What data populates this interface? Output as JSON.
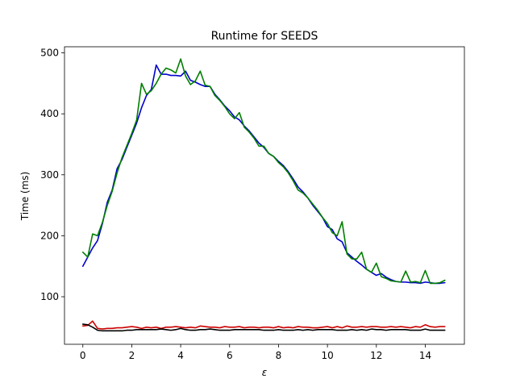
{
  "chart_data": {
    "type": "line",
    "title": "Runtime for SEEDS",
    "xlabel": "ε",
    "ylabel": "Time (ms)",
    "xlim": [
      -0.75,
      15.6
    ],
    "ylim": [
      22,
      510
    ],
    "xticks": [
      0,
      2,
      4,
      6,
      8,
      10,
      12,
      14
    ],
    "xtick_labels": [
      "0",
      "2",
      "4",
      "6",
      "8",
      "10",
      "12",
      "14"
    ],
    "yticks": [
      100,
      200,
      300,
      400,
      500
    ],
    "ytick_labels": [
      "100",
      "200",
      "300",
      "400",
      "500"
    ],
    "grid": false,
    "legend": "none",
    "x": [
      0.0,
      0.2,
      0.4,
      0.6,
      0.8,
      1.0,
      1.2,
      1.4,
      1.6,
      1.8,
      2.0,
      2.2,
      2.4,
      2.6,
      2.8,
      3.0,
      3.2,
      3.4,
      3.6,
      3.8,
      4.0,
      4.2,
      4.4,
      4.6,
      4.8,
      5.0,
      5.2,
      5.4,
      5.6,
      5.8,
      6.0,
      6.2,
      6.4,
      6.6,
      6.8,
      7.0,
      7.2,
      7.4,
      7.6,
      7.8,
      8.0,
      8.2,
      8.4,
      8.6,
      8.8,
      9.0,
      9.2,
      9.4,
      9.6,
      9.8,
      10.0,
      10.2,
      10.4,
      10.6,
      10.8,
      11.0,
      11.2,
      11.4,
      11.6,
      11.8,
      12.0,
      12.2,
      12.4,
      12.6,
      12.8,
      13.0,
      13.2,
      13.4,
      13.6,
      13.8,
      14.0,
      14.2,
      14.4,
      14.6,
      14.8
    ],
    "series": [
      {
        "color": "#0000cc",
        "values": [
          150,
          165,
          180,
          192,
          220,
          255,
          275,
          310,
          325,
          345,
          365,
          385,
          410,
          430,
          440,
          480,
          465,
          465,
          463,
          463,
          462,
          470,
          455,
          452,
          448,
          445,
          445,
          432,
          423,
          413,
          405,
          395,
          390,
          380,
          372,
          362,
          352,
          345,
          335,
          330,
          322,
          315,
          305,
          293,
          280,
          272,
          262,
          250,
          240,
          230,
          215,
          210,
          195,
          190,
          172,
          165,
          158,
          152,
          145,
          140,
          135,
          138,
          132,
          128,
          125,
          124,
          124,
          123,
          123,
          122,
          124,
          123,
          122,
          122,
          123
        ]
      },
      {
        "color": "#007f00",
        "values": [
          173,
          165,
          203,
          200,
          222,
          250,
          273,
          303,
          328,
          348,
          368,
          390,
          450,
          432,
          438,
          450,
          465,
          475,
          472,
          467,
          490,
          462,
          448,
          454,
          470,
          447,
          445,
          430,
          422,
          412,
          400,
          392,
          402,
          378,
          370,
          360,
          347,
          347,
          335,
          330,
          320,
          313,
          303,
          290,
          275,
          270,
          262,
          252,
          242,
          230,
          220,
          205,
          200,
          223,
          170,
          162,
          162,
          173,
          145,
          140,
          155,
          133,
          130,
          126,
          125,
          124,
          142,
          124,
          125,
          123,
          143,
          122,
          122,
          123,
          127
        ]
      },
      {
        "color": "#cc0000",
        "values": [
          52,
          53,
          60,
          48,
          47,
          48,
          48,
          49,
          49,
          50,
          51,
          50,
          48,
          50,
          49,
          50,
          48,
          50,
          50,
          51,
          50,
          49,
          50,
          49,
          52,
          51,
          50,
          50,
          49,
          51,
          50,
          50,
          51,
          49,
          50,
          50,
          49,
          50,
          50,
          49,
          51,
          49,
          50,
          49,
          51,
          50,
          50,
          49,
          49,
          50,
          51,
          49,
          51,
          49,
          52,
          50,
          50,
          51,
          50,
          51,
          51,
          50,
          50,
          51,
          50,
          51,
          50,
          49,
          51,
          50,
          54,
          51,
          50,
          51,
          51
        ]
      },
      {
        "color": "#000000",
        "values": [
          55,
          54,
          50,
          45,
          44,
          44,
          44,
          44,
          44,
          45,
          45,
          46,
          46,
          46,
          46,
          46,
          47,
          46,
          45,
          46,
          48,
          46,
          45,
          45,
          46,
          46,
          47,
          46,
          45,
          45,
          45,
          46,
          46,
          46,
          46,
          46,
          46,
          45,
          45,
          45,
          46,
          45,
          45,
          45,
          46,
          45,
          46,
          45,
          46,
          46,
          46,
          46,
          45,
          45,
          45,
          46,
          45,
          46,
          45,
          47,
          46,
          46,
          45,
          46,
          46,
          46,
          46,
          45,
          45,
          45,
          47,
          45,
          45,
          45,
          45
        ]
      }
    ]
  }
}
